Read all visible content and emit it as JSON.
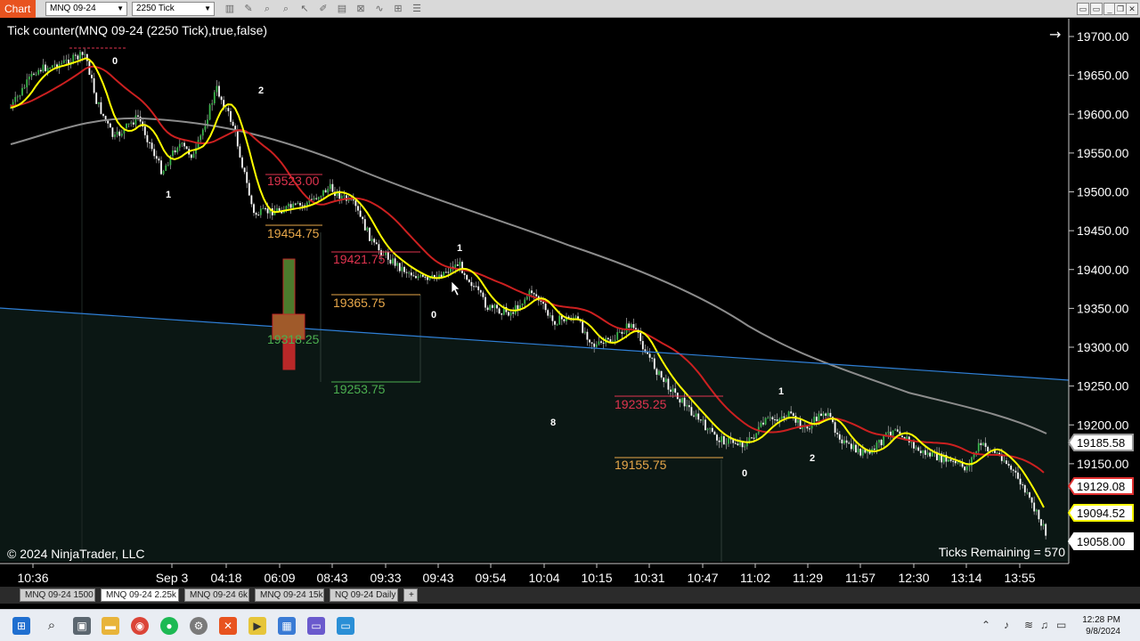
{
  "toolbar": {
    "app_tab": "Chart",
    "instrument": "MNQ 09-24",
    "bar_type": "2250 Tick"
  },
  "chart": {
    "indicator_label": "Tick counter(MNQ 09-24 (2250 Tick),true,false)",
    "copyright": "© 2024 NinjaTrader, LLC",
    "ticks_remaining": "Ticks Remaining = 570",
    "y_ticks": [
      "19700.00",
      "19650.00",
      "19600.00",
      "19550.00",
      "19500.00",
      "19450.00",
      "19400.00",
      "19350.00",
      "19300.00",
      "19250.00",
      "19200.00",
      "19150.00"
    ],
    "x_ticks": [
      "10:36",
      "Sep 3",
      "04:18",
      "06:09",
      "08:43",
      "09:33",
      "09:43",
      "09:54",
      "10:04",
      "10:15",
      "10:31",
      "10:47",
      "11:02",
      "11:29",
      "11:57",
      "12:30",
      "13:14",
      "13:55"
    ],
    "price_badges": [
      {
        "label": "19185.58",
        "color": "#9a9a9a"
      },
      {
        "label": "19129.08",
        "color": "#e03030"
      },
      {
        "label": "19094.52",
        "color": "#ffff00"
      },
      {
        "label": "19058.00",
        "color": "#ffffff"
      }
    ],
    "level_labels": [
      {
        "text": "19523.00",
        "color": "#e0344f"
      },
      {
        "text": "19454.75",
        "color": "#e8a84a"
      },
      {
        "text": "19421.75",
        "color": "#e0344f"
      },
      {
        "text": "19365.75",
        "color": "#e8a84a"
      },
      {
        "text": "19318.25",
        "color": "#4caf50"
      },
      {
        "text": "19253.75",
        "color": "#4caf50"
      },
      {
        "text": "19235.25",
        "color": "#e0344f"
      },
      {
        "text": "19155.75",
        "color": "#e8a84a"
      }
    ],
    "swing_counts": [
      "0",
      "2",
      "1",
      "1",
      "0",
      "8",
      "1",
      "2",
      "0"
    ]
  },
  "tabs": [
    "MNQ 09-24 1500",
    "MNQ 09-24 2.25k",
    "MNQ 09-24 6k",
    "MNQ 09-24 15k",
    "NQ 09-24 Daily",
    "+"
  ],
  "active_tab": 1,
  "clock": {
    "time": "12:28 PM",
    "date": "9/8/2024"
  }
}
